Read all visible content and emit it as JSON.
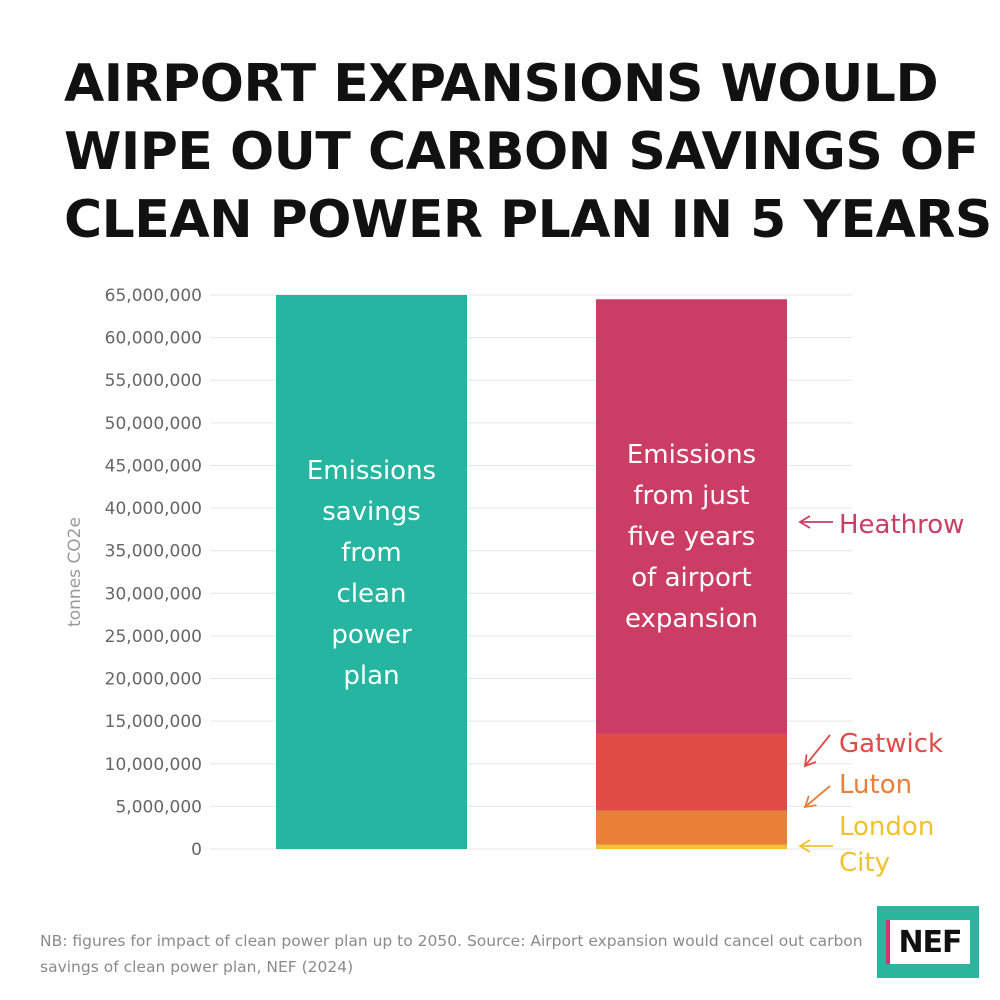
{
  "title_lines": [
    "AIRPORT EXPANSIONS WOULD",
    "WIPE OUT CARBON SAVINGS OF",
    "CLEAN POWER PLAN IN 5 YEARS"
  ],
  "footnote": "NB: figures for impact of clean power plan up to 2050. Source: Airport expansion would cancel out carbon savings of clean power plan, NEF (2024)",
  "logo_text": "NEF",
  "colors": {
    "clean_power": "#26b5a0",
    "heathrow": "#cc3d66",
    "gatwick": "#e04a47",
    "luton": "#e8803a",
    "london_city": "#f2c12e",
    "grid": "#e6e6e6",
    "tick": "#666666"
  },
  "chart_data": {
    "type": "bar",
    "stacked": true,
    "ylabel": "tonnes CO2e",
    "ylim": [
      0,
      65000000
    ],
    "yticks": [
      0,
      5000000,
      10000000,
      15000000,
      20000000,
      25000000,
      30000000,
      35000000,
      40000000,
      45000000,
      50000000,
      55000000,
      60000000,
      65000000
    ],
    "ytick_labels": [
      "0",
      "5,000,000",
      "10,000,000",
      "15,000,000",
      "20,000,000",
      "25,000,000",
      "30,000,000",
      "35,000,000",
      "40,000,000",
      "45,000,000",
      "50,000,000",
      "55,000,000",
      "60,000,000",
      "65,000,000"
    ],
    "grid": true,
    "bars": [
      {
        "label_lines": [
          "Emissions",
          "savings",
          "from",
          "clean",
          "power",
          "plan"
        ],
        "segments": [
          {
            "name": "",
            "value": 65000000,
            "color_key": "clean_power"
          }
        ]
      },
      {
        "label_lines": [
          "Emissions",
          "from just",
          "five years",
          "of airport",
          "expansion"
        ],
        "segments": [
          {
            "name": "London City",
            "value": 500000,
            "color_key": "london_city"
          },
          {
            "name": "Luton",
            "value": 4000000,
            "color_key": "luton"
          },
          {
            "name": "Gatwick",
            "value": 9000000,
            "color_key": "gatwick"
          },
          {
            "name": "Heathrow",
            "value": 51000000,
            "color_key": "heathrow"
          }
        ]
      }
    ],
    "annotations": [
      {
        "text_lines": [
          "Heathrow"
        ],
        "color_key": "heathrow",
        "arrow": "straight"
      },
      {
        "text_lines": [
          "Gatwick"
        ],
        "color_key": "gatwick",
        "arrow": "diagonal"
      },
      {
        "text_lines": [
          "Luton"
        ],
        "color_key": "luton",
        "arrow": "diagonal"
      },
      {
        "text_lines": [
          "London",
          "City"
        ],
        "color_key": "london_city",
        "arrow": "straight"
      }
    ]
  }
}
